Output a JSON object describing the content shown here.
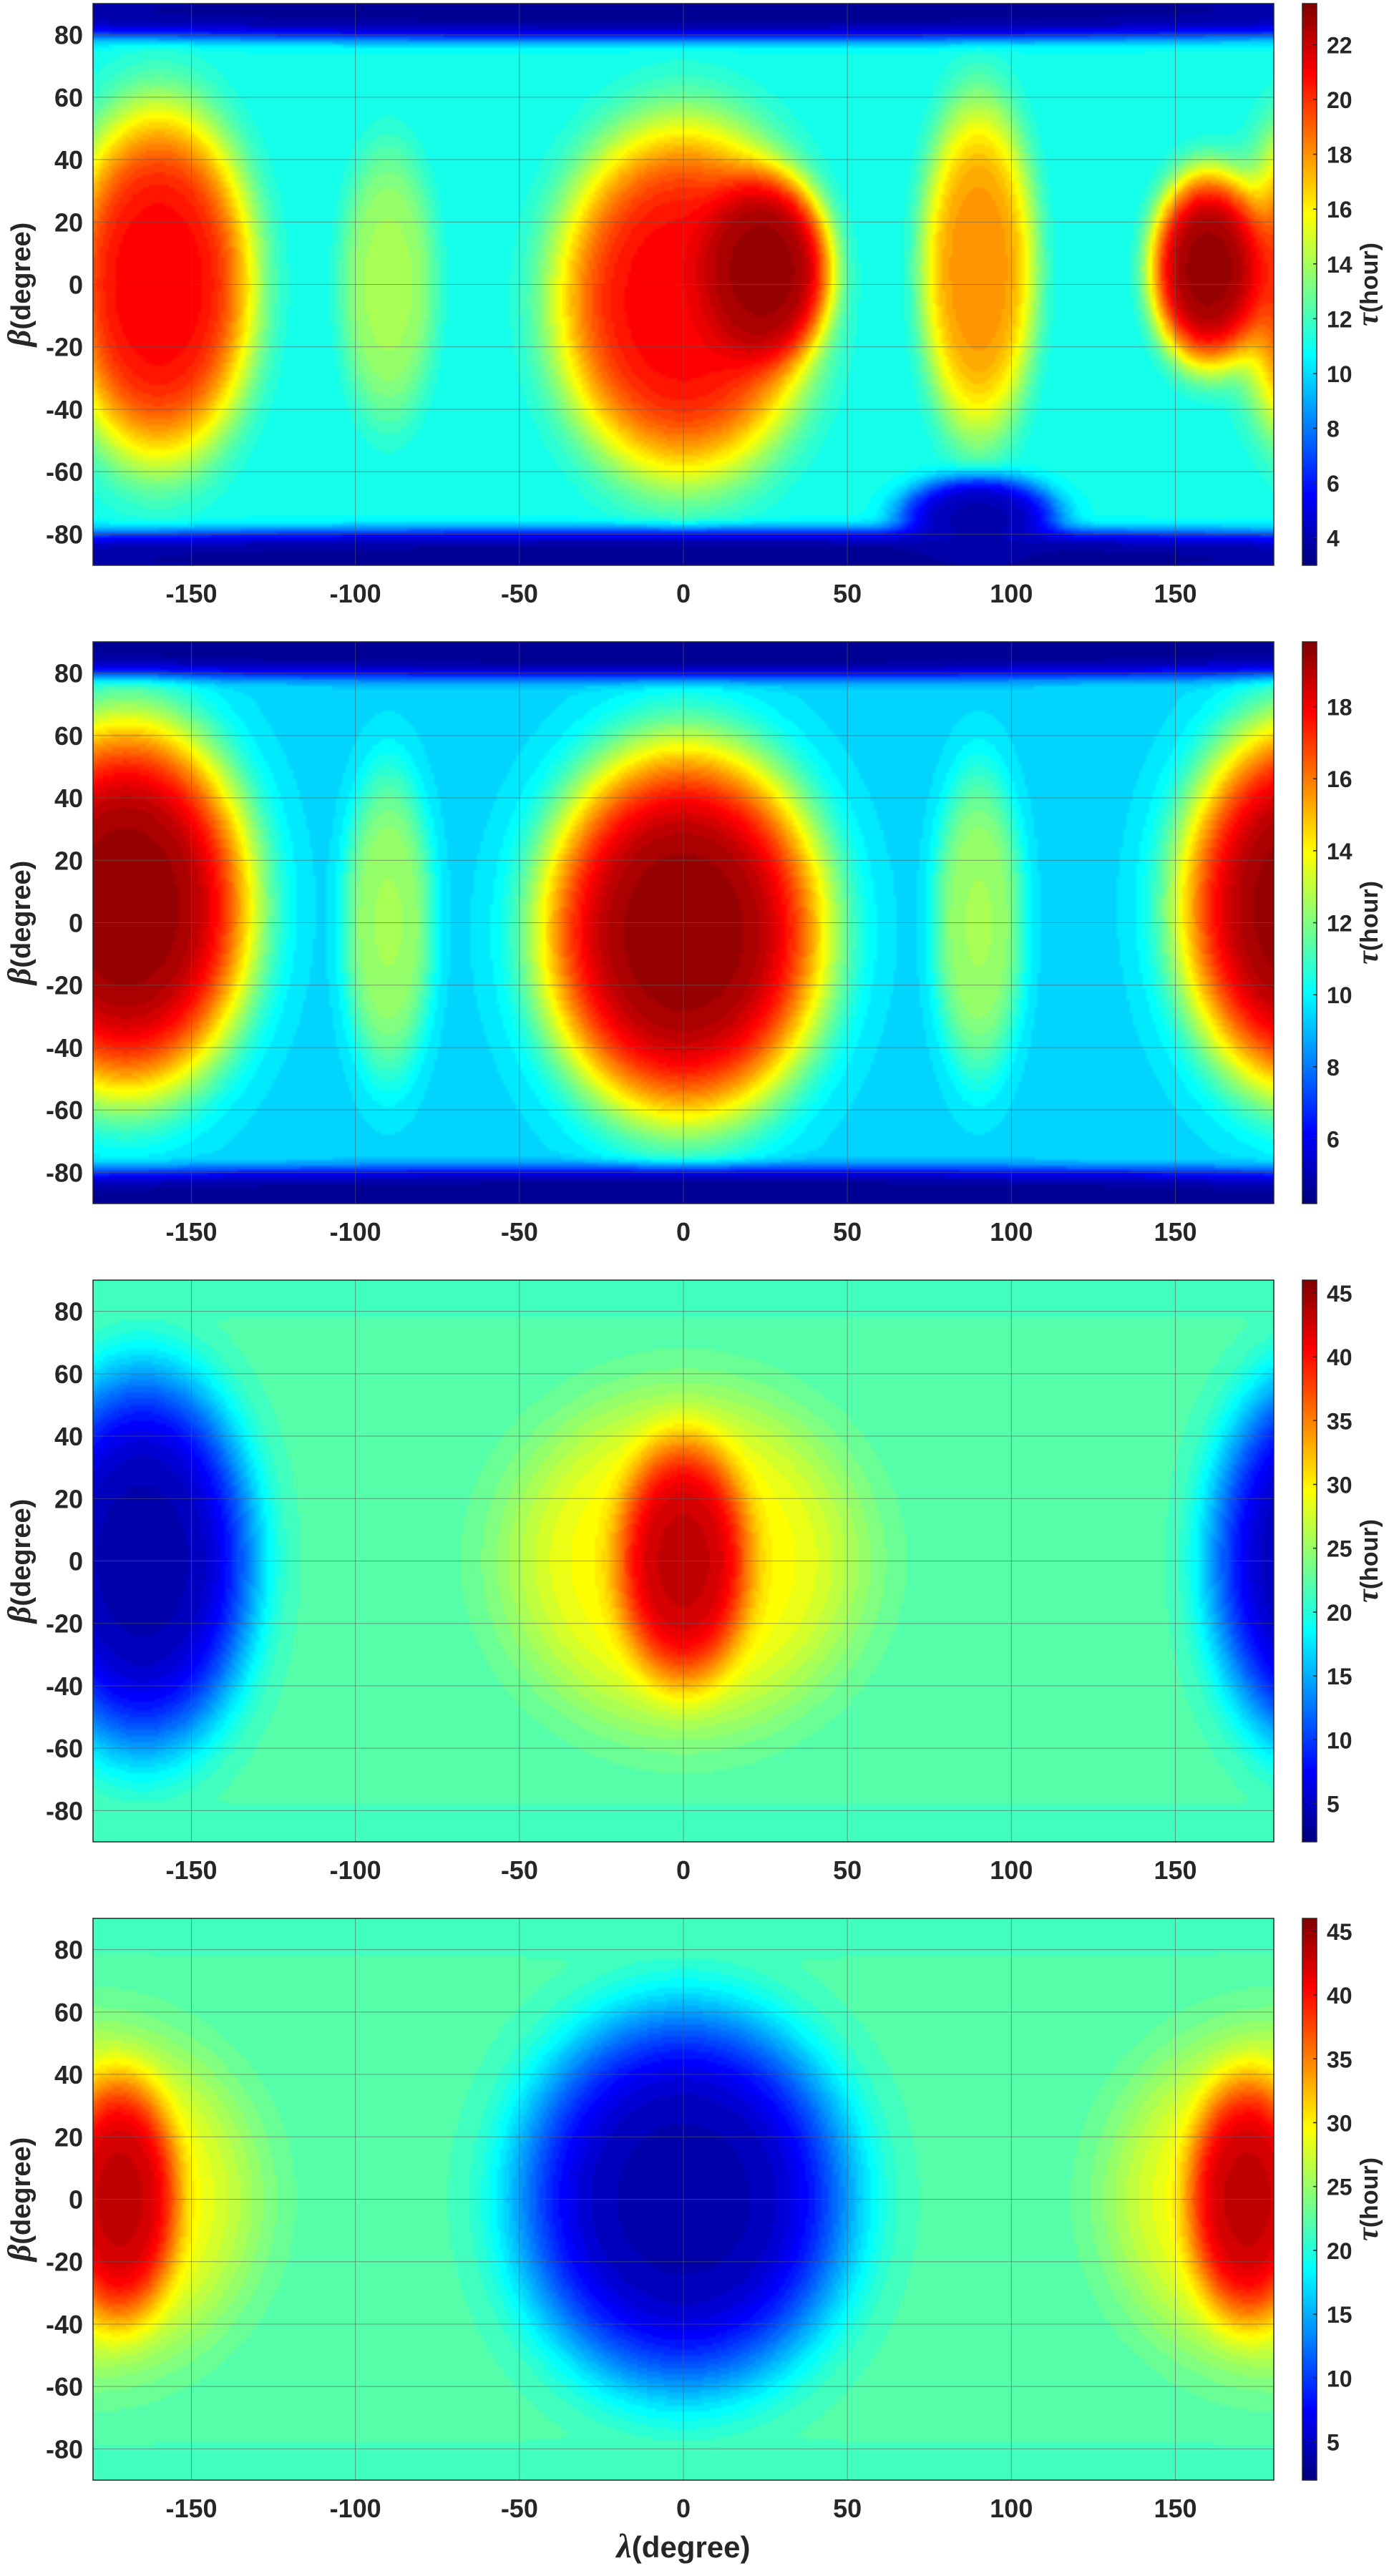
{
  "chart_data": [
    {
      "type": "heatmap",
      "title": "",
      "xlabel": "λ(degree)",
      "ylabel_symbol": "β",
      "ylabel_text": "(degree)",
      "colorbar_symbol": "τ",
      "colorbar_label": "(hour)",
      "xlim": [
        -180,
        180
      ],
      "ylim": [
        -90,
        90
      ],
      "xticks": [
        -150,
        -100,
        -50,
        0,
        50,
        100,
        150
      ],
      "yticks": [
        80,
        60,
        40,
        20,
        0,
        -20,
        -40,
        -60,
        -80
      ],
      "clim": [
        3,
        23.5
      ],
      "colorbar_ticks": [
        4,
        6,
        8,
        10,
        12,
        14,
        16,
        18,
        20,
        22
      ],
      "colormap": "jet",
      "grid": true,
      "show_xlabel": false,
      "base_value": 11,
      "features": [
        {
          "lon": -160,
          "lat": 0,
          "value": 21,
          "rlon": 30,
          "rlat": 58
        },
        {
          "lon": 200,
          "lat": 0,
          "value": 21,
          "rlon": 30,
          "rlat": 58
        },
        {
          "lon": 0,
          "lat": -5,
          "value": 21,
          "rlon": 40,
          "rlat": 58
        },
        {
          "lon": 25,
          "lat": 5,
          "value": 23,
          "rlon": 20,
          "rlat": 30
        },
        {
          "lon": 160,
          "lat": 5,
          "value": 23,
          "rlon": 18,
          "rlat": 32
        },
        {
          "lon": 90,
          "lat": 5,
          "value": 18,
          "rlon": 18,
          "rlat": 55
        },
        {
          "lon": -90,
          "lat": 0,
          "value": 14,
          "rlon": 15,
          "rlat": 45
        },
        {
          "lon": 0,
          "lat": 88,
          "value": 3.5,
          "rlon": 400,
          "rlat": 10
        },
        {
          "lon": 0,
          "lat": -88,
          "value": 3.5,
          "rlon": 400,
          "rlat": 10
        },
        {
          "lon": 90,
          "lat": -75,
          "value": 4,
          "rlon": 25,
          "rlat": 14
        }
      ]
    },
    {
      "type": "heatmap",
      "title": "",
      "xlabel": "λ(degree)",
      "ylabel_symbol": "β",
      "ylabel_text": "(degree)",
      "colorbar_symbol": "τ",
      "colorbar_label": "(hour)",
      "xlim": [
        -180,
        180
      ],
      "ylim": [
        -90,
        90
      ],
      "xticks": [
        -150,
        -100,
        -50,
        0,
        50,
        100,
        150
      ],
      "yticks": [
        80,
        60,
        40,
        20,
        0,
        -20,
        -40,
        -60,
        -80
      ],
      "clim": [
        4.2,
        19.8
      ],
      "colorbar_ticks": [
        6,
        8,
        10,
        12,
        14,
        16,
        18
      ],
      "colormap": "jet",
      "grid": true,
      "show_xlabel": false,
      "base_value": 9.5,
      "features": [
        {
          "lon": -170,
          "lat": 5,
          "value": 19.5,
          "rlon": 40,
          "rlat": 62
        },
        {
          "lon": 190,
          "lat": 5,
          "value": 19.5,
          "rlon": 40,
          "rlat": 62
        },
        {
          "lon": 0,
          "lat": -3,
          "value": 19.5,
          "rlon": 45,
          "rlat": 62
        },
        {
          "lon": -90,
          "lat": 0,
          "value": 12.5,
          "rlon": 14,
          "rlat": 50
        },
        {
          "lon": 90,
          "lat": 0,
          "value": 12.5,
          "rlon": 14,
          "rlat": 50
        },
        {
          "lon": 0,
          "lat": 88,
          "value": 4.5,
          "rlon": 400,
          "rlat": 10
        },
        {
          "lon": 0,
          "lat": -88,
          "value": 4.5,
          "rlon": 400,
          "rlat": 10
        }
      ]
    },
    {
      "type": "heatmap",
      "title": "",
      "xlabel": "λ(degree)",
      "ylabel_symbol": "β",
      "ylabel_text": "(degree)",
      "colorbar_symbol": "τ",
      "colorbar_label": "(hour)",
      "xlim": [
        -180,
        180
      ],
      "ylim": [
        -90,
        90
      ],
      "xticks": [
        -150,
        -100,
        -50,
        0,
        50,
        100,
        150
      ],
      "yticks": [
        80,
        60,
        40,
        20,
        0,
        -20,
        -40,
        -60,
        -80
      ],
      "clim": [
        2,
        46
      ],
      "colorbar_ticks": [
        5,
        10,
        15,
        20,
        25,
        30,
        35,
        40,
        45
      ],
      "colormap": "jet",
      "grid": true,
      "show_xlabel": false,
      "base_value": 22,
      "features": [
        {
          "lon": -165,
          "lat": 0,
          "value": 4,
          "rlon": 35,
          "rlat": 62
        },
        {
          "lon": 195,
          "lat": 0,
          "value": 4,
          "rlon": 35,
          "rlat": 62
        },
        {
          "lon": 0,
          "lat": 0,
          "value": 30,
          "rlon": 55,
          "rlat": 55
        },
        {
          "lon": 0,
          "lat": 0,
          "value": 43,
          "rlon": 20,
          "rlat": 38
        },
        {
          "lon": 0,
          "lat": 88,
          "value": 21,
          "rlon": 400,
          "rlat": 10
        },
        {
          "lon": 0,
          "lat": -88,
          "value": 21,
          "rlon": 400,
          "rlat": 10
        }
      ]
    },
    {
      "type": "heatmap",
      "title": "",
      "xlabel": "λ(degree)",
      "ylabel_symbol": "β",
      "ylabel_text": "(degree)",
      "colorbar_symbol": "τ",
      "colorbar_label": "(hour)",
      "xlim": [
        -180,
        180
      ],
      "ylim": [
        -90,
        90
      ],
      "xticks": [
        -150,
        -100,
        -50,
        0,
        50,
        100,
        150
      ],
      "yticks": [
        80,
        60,
        40,
        20,
        0,
        -20,
        -40,
        -60,
        -80
      ],
      "clim": [
        2,
        46
      ],
      "colorbar_ticks": [
        5,
        10,
        15,
        20,
        25,
        30,
        35,
        40,
        45
      ],
      "colormap": "jet",
      "grid": true,
      "show_xlabel": true,
      "base_value": 22,
      "features": [
        {
          "lon": 0,
          "lat": 0,
          "value": 4,
          "rlon": 52,
          "rlat": 62
        },
        {
          "lon": -180,
          "lat": 0,
          "value": 30,
          "rlon": 50,
          "rlat": 55
        },
        {
          "lon": 180,
          "lat": 0,
          "value": 30,
          "rlon": 50,
          "rlat": 55
        },
        {
          "lon": -172,
          "lat": 0,
          "value": 43,
          "rlon": 18,
          "rlat": 38
        },
        {
          "lon": 172,
          "lat": 0,
          "value": 43,
          "rlon": 18,
          "rlat": 38
        },
        {
          "lon": 0,
          "lat": 88,
          "value": 21,
          "rlon": 400,
          "rlat": 10
        },
        {
          "lon": 0,
          "lat": -88,
          "value": 21,
          "rlon": 400,
          "rlat": 10
        }
      ]
    }
  ]
}
